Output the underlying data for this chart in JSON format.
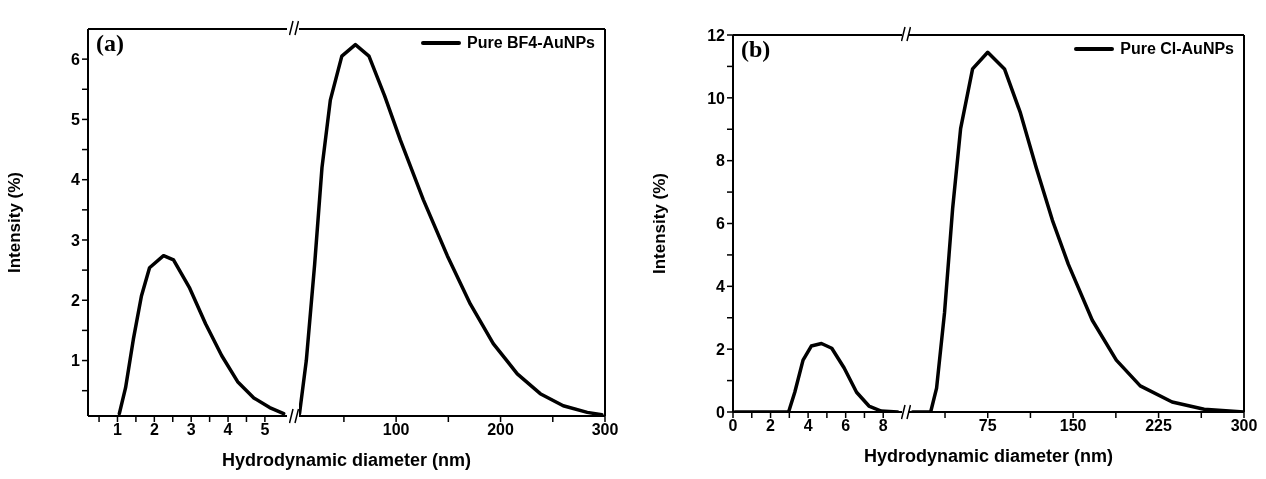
{
  "chart_data": [
    {
      "type": "line",
      "ylabel": "Intensity (%)",
      "xlabel": "Hydrodynamic diameter (nm)",
      "annotations": [
        "(a)"
      ],
      "x": [
        1.05,
        1.22,
        1.43,
        1.65,
        1.87,
        2.25,
        2.52,
        2.96,
        3.39,
        3.83,
        4.26,
        4.7,
        5.13,
        5.51
      ],
      "series": [
        {
          "color": "#000000",
          "values": [
            0.12,
            0.55,
            1.35,
            2.07,
            2.54,
            2.74,
            2.67,
            2.2,
            1.61,
            1.08,
            0.65,
            0.38,
            0.22,
            0.12
          ]
        }
      ],
      "xlim": [
        0.2,
        5.6
      ],
      "xticks": [
        {
          "value": 0.5,
          "label": null
        },
        1,
        {
          "value": 1.5,
          "label": null
        },
        2,
        {
          "value": 2.5,
          "label": null
        },
        3,
        {
          "value": 3.5,
          "label": null
        },
        4,
        {
          "value": 4.5,
          "label": null
        },
        5
      ],
      "ylim": [
        0.08,
        6.5
      ],
      "yticks": [
        {
          "value": 0.5,
          "label": null
        },
        1,
        {
          "value": 1.5,
          "label": null
        },
        2,
        {
          "value": 2.5,
          "label": null
        },
        3,
        {
          "value": 3.5,
          "label": null
        },
        4,
        {
          "value": 4.5,
          "label": null
        },
        5,
        {
          "value": 5.5,
          "label": null
        },
        6
      ]
    },
    {
      "type": "line",
      "legend": "top right",
      "tick_labels": "x",
      "x": [
        7.5,
        14,
        22,
        29,
        37,
        48,
        61,
        74,
        89,
        104,
        126,
        149,
        171,
        193,
        216,
        238,
        260,
        283,
        297
      ],
      "series": [
        {
          "name": "Pure BF4-AuNPs",
          "color": "#000000",
          "values": [
            0.12,
            1.0,
            2.6,
            4.2,
            5.32,
            6.05,
            6.24,
            6.05,
            5.39,
            4.66,
            3.67,
            2.74,
            1.94,
            1.28,
            0.78,
            0.45,
            0.25,
            0.14,
            0.1
          ]
        }
      ],
      "xlim": [
        7,
        300
      ],
      "xticks": [
        {
          "value": 50,
          "label": null
        },
        100,
        {
          "value": 150,
          "label": null
        },
        200,
        {
          "value": 250,
          "label": null
        },
        300
      ],
      "ylim": [
        0.08,
        6.5
      ]
    },
    {
      "type": "line",
      "ylabel": "Intensity (%)",
      "xlabel": "Hydrodynamic diameter (nm)",
      "annotations": [
        "(b)"
      ],
      "x": [
        0.1,
        2.96,
        3.29,
        3.73,
        4.17,
        4.71,
        5.26,
        5.92,
        6.58,
        7.24,
        7.89,
        8.77
      ],
      "series": [
        {
          "color": "#000000",
          "values": [
            0,
            0,
            0.63,
            1.65,
            2.1,
            2.18,
            2.03,
            1.4,
            0.63,
            0.19,
            0.03,
            0
          ]
        }
      ],
      "xlim": [
        0,
        9
      ],
      "xticks": [
        0,
        {
          "value": 1,
          "label": null
        },
        2,
        {
          "value": 3,
          "label": null
        },
        4,
        {
          "value": 5,
          "label": null
        },
        6,
        {
          "value": 7,
          "label": null
        },
        8
      ],
      "ylim": [
        0,
        12
      ],
      "yticks": [
        0,
        {
          "value": 1,
          "label": null
        },
        2,
        {
          "value": 3,
          "label": null
        },
        4,
        {
          "value": 5,
          "label": null
        },
        6,
        {
          "value": 7,
          "label": null
        },
        8,
        {
          "value": 9,
          "label": null
        },
        10,
        {
          "value": 11,
          "label": null
        },
        12
      ]
    },
    {
      "type": "line",
      "legend": "top right",
      "tick_labels": "x",
      "x": [
        9,
        24.9,
        30.1,
        37.1,
        44.2,
        51.2,
        61.7,
        75,
        89.7,
        103.7,
        117.8,
        131.8,
        145.8,
        166.8,
        187.9,
        208.9,
        236.9,
        265,
        300
      ],
      "series": [
        {
          "name": "Pure Cl-AuNPs",
          "color": "#000000",
          "values": [
            0,
            0,
            0.76,
            3.17,
            6.48,
            9.02,
            10.92,
            11.45,
            10.92,
            9.52,
            7.75,
            6.1,
            4.7,
            2.92,
            1.65,
            0.83,
            0.32,
            0.09,
            0
          ]
        }
      ],
      "xlim": [
        5,
        300
      ],
      "xticks": [
        {
          "value": 37.5,
          "label": null
        },
        75,
        {
          "value": 112.5,
          "label": null
        },
        150,
        {
          "value": 187.5,
          "label": null
        },
        225,
        {
          "value": 262.5,
          "label": null
        },
        300
      ],
      "ylim": [
        0,
        12
      ]
    }
  ]
}
